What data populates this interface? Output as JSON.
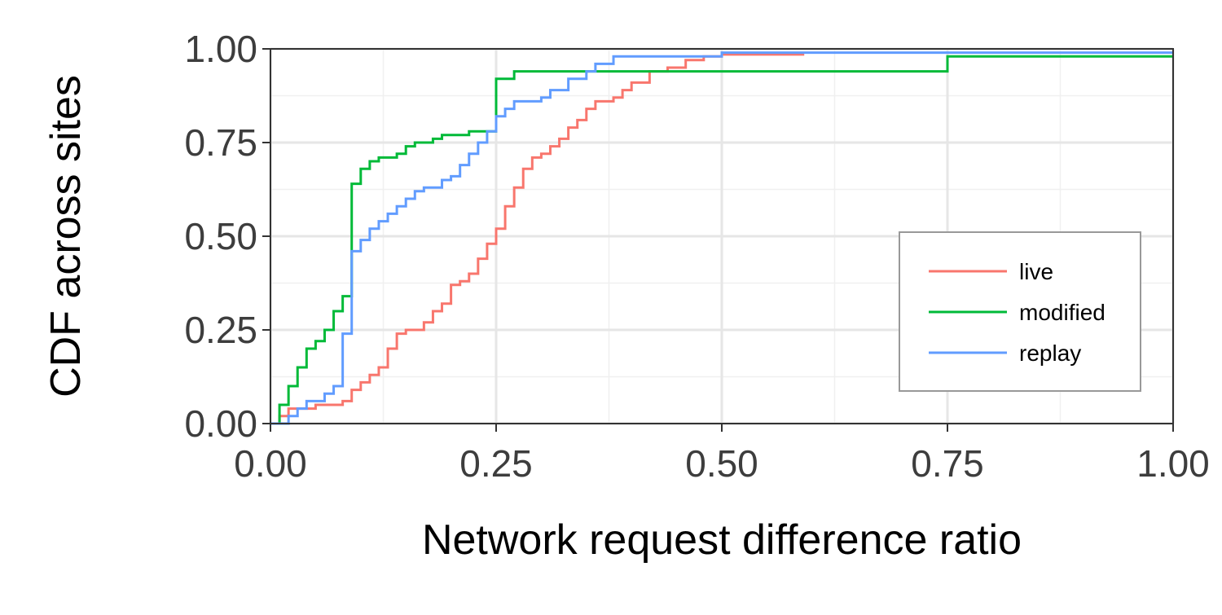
{
  "chart_data": {
    "type": "line",
    "subtype": "step-cdf",
    "title": "",
    "xlabel": "Network request difference ratio",
    "ylabel": "CDF across sites",
    "xlim": [
      0,
      1
    ],
    "ylim": [
      0,
      1
    ],
    "x_ticks": [
      "0.00",
      "0.25",
      "0.50",
      "0.75",
      "1.00"
    ],
    "y_ticks": [
      "0.00",
      "0.25",
      "0.50",
      "0.75",
      "1.00"
    ],
    "grid": true,
    "legend_position": "bottom-right",
    "series": [
      {
        "name": "live",
        "color": "#f8766d",
        "points": [
          [
            0.0,
            0.0
          ],
          [
            0.01,
            0.02
          ],
          [
            0.02,
            0.04
          ],
          [
            0.05,
            0.05
          ],
          [
            0.07,
            0.05
          ],
          [
            0.08,
            0.06
          ],
          [
            0.09,
            0.09
          ],
          [
            0.1,
            0.11
          ],
          [
            0.11,
            0.13
          ],
          [
            0.12,
            0.15
          ],
          [
            0.13,
            0.2
          ],
          [
            0.14,
            0.24
          ],
          [
            0.15,
            0.25
          ],
          [
            0.17,
            0.27
          ],
          [
            0.18,
            0.3
          ],
          [
            0.19,
            0.32
          ],
          [
            0.2,
            0.37
          ],
          [
            0.21,
            0.38
          ],
          [
            0.22,
            0.4
          ],
          [
            0.23,
            0.44
          ],
          [
            0.24,
            0.48
          ],
          [
            0.25,
            0.52
          ],
          [
            0.26,
            0.58
          ],
          [
            0.27,
            0.63
          ],
          [
            0.28,
            0.68
          ],
          [
            0.29,
            0.71
          ],
          [
            0.3,
            0.72
          ],
          [
            0.31,
            0.74
          ],
          [
            0.32,
            0.76
          ],
          [
            0.33,
            0.79
          ],
          [
            0.34,
            0.81
          ],
          [
            0.35,
            0.84
          ],
          [
            0.36,
            0.86
          ],
          [
            0.38,
            0.87
          ],
          [
            0.39,
            0.89
          ],
          [
            0.4,
            0.91
          ],
          [
            0.42,
            0.94
          ],
          [
            0.44,
            0.95
          ],
          [
            0.46,
            0.97
          ],
          [
            0.48,
            0.98
          ],
          [
            0.5,
            0.985
          ],
          [
            0.59,
            0.99
          ]
        ]
      },
      {
        "name": "modified",
        "color": "#00ba38",
        "points": [
          [
            0.0,
            0.0
          ],
          [
            0.01,
            0.05
          ],
          [
            0.02,
            0.1
          ],
          [
            0.03,
            0.15
          ],
          [
            0.04,
            0.2
          ],
          [
            0.05,
            0.22
          ],
          [
            0.06,
            0.25
          ],
          [
            0.07,
            0.3
          ],
          [
            0.08,
            0.34
          ],
          [
            0.09,
            0.39
          ],
          [
            0.09,
            0.47
          ],
          [
            0.09,
            0.64
          ],
          [
            0.1,
            0.68
          ],
          [
            0.11,
            0.7
          ],
          [
            0.12,
            0.71
          ],
          [
            0.14,
            0.72
          ],
          [
            0.15,
            0.74
          ],
          [
            0.16,
            0.75
          ],
          [
            0.18,
            0.76
          ],
          [
            0.19,
            0.77
          ],
          [
            0.22,
            0.78
          ],
          [
            0.25,
            0.79
          ],
          [
            0.25,
            0.92
          ],
          [
            0.27,
            0.94
          ],
          [
            0.5,
            0.94
          ],
          [
            0.75,
            0.94
          ],
          [
            0.75,
            0.98
          ],
          [
            1.0,
            0.98
          ]
        ]
      },
      {
        "name": "replay",
        "color": "#619cff",
        "points": [
          [
            0.0,
            0.0
          ],
          [
            0.02,
            0.02
          ],
          [
            0.03,
            0.04
          ],
          [
            0.04,
            0.06
          ],
          [
            0.06,
            0.08
          ],
          [
            0.07,
            0.1
          ],
          [
            0.08,
            0.13
          ],
          [
            0.08,
            0.24
          ],
          [
            0.09,
            0.3
          ],
          [
            0.09,
            0.46
          ],
          [
            0.1,
            0.49
          ],
          [
            0.11,
            0.52
          ],
          [
            0.12,
            0.54
          ],
          [
            0.13,
            0.56
          ],
          [
            0.14,
            0.58
          ],
          [
            0.15,
            0.6
          ],
          [
            0.16,
            0.62
          ],
          [
            0.17,
            0.63
          ],
          [
            0.19,
            0.65
          ],
          [
            0.2,
            0.66
          ],
          [
            0.21,
            0.69
          ],
          [
            0.22,
            0.72
          ],
          [
            0.23,
            0.75
          ],
          [
            0.24,
            0.78
          ],
          [
            0.25,
            0.79
          ],
          [
            0.25,
            0.82
          ],
          [
            0.26,
            0.84
          ],
          [
            0.27,
            0.86
          ],
          [
            0.3,
            0.87
          ],
          [
            0.31,
            0.89
          ],
          [
            0.33,
            0.92
          ],
          [
            0.35,
            0.94
          ],
          [
            0.36,
            0.96
          ],
          [
            0.38,
            0.98
          ],
          [
            0.42,
            0.98
          ],
          [
            0.5,
            0.99
          ],
          [
            1.0,
            0.99
          ]
        ]
      }
    ]
  }
}
